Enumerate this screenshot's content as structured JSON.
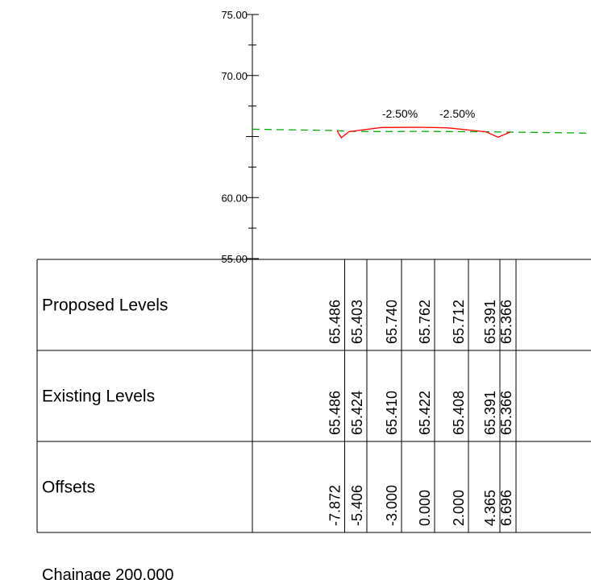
{
  "chart_data": {
    "type": "cross-section",
    "y_axis": {
      "range": [
        55,
        75
      ],
      "ticks": [
        "75.00",
        "70.00",
        "60.00",
        "55.00"
      ]
    },
    "x_range": [
      -10,
      10
    ],
    "proposed": {
      "color": "#ff0000",
      "points": [
        [
          -7.872,
          65.486
        ],
        [
          -7.0,
          64.9
        ],
        [
          -5.406,
          65.403
        ],
        [
          -3.0,
          65.74
        ],
        [
          0.0,
          65.762
        ],
        [
          2.0,
          65.712
        ],
        [
          4.365,
          65.391
        ],
        [
          5.5,
          64.95
        ],
        [
          6.696,
          65.366
        ]
      ]
    },
    "existing": {
      "color": "#00aa00",
      "style": "dashed",
      "points": [
        [
          -10,
          65.6
        ],
        [
          -7.872,
          65.486
        ],
        [
          -5.406,
          65.424
        ],
        [
          -3.0,
          65.41
        ],
        [
          0.0,
          65.422
        ],
        [
          2.0,
          65.408
        ],
        [
          4.365,
          65.391
        ],
        [
          6.696,
          65.366
        ],
        [
          10,
          65.28
        ]
      ]
    },
    "grades": [
      {
        "text": "-2.50%",
        "x": -1.5
      },
      {
        "text": "-2.50%",
        "x": 2.6
      }
    ]
  },
  "table": {
    "columns_x": [
      -7.872,
      -5.406,
      -3.0,
      0.0,
      2.0,
      4.365,
      6.696
    ],
    "rows": [
      {
        "label": "Proposed Levels",
        "values": [
          "65.486",
          "65.403",
          "65.740",
          "65.762",
          "65.712",
          "65.391",
          "65.366"
        ]
      },
      {
        "label": "Existing Levels",
        "values": [
          "65.486",
          "65.424",
          "65.410",
          "65.422",
          "65.408",
          "65.391",
          "65.366"
        ]
      },
      {
        "label": "Offsets",
        "values": [
          "-7.872",
          "-5.406",
          "-3.000",
          "0.000",
          "2.000",
          "4.365",
          "6.696"
        ]
      }
    ]
  },
  "chainage": "Chainage 200.000"
}
